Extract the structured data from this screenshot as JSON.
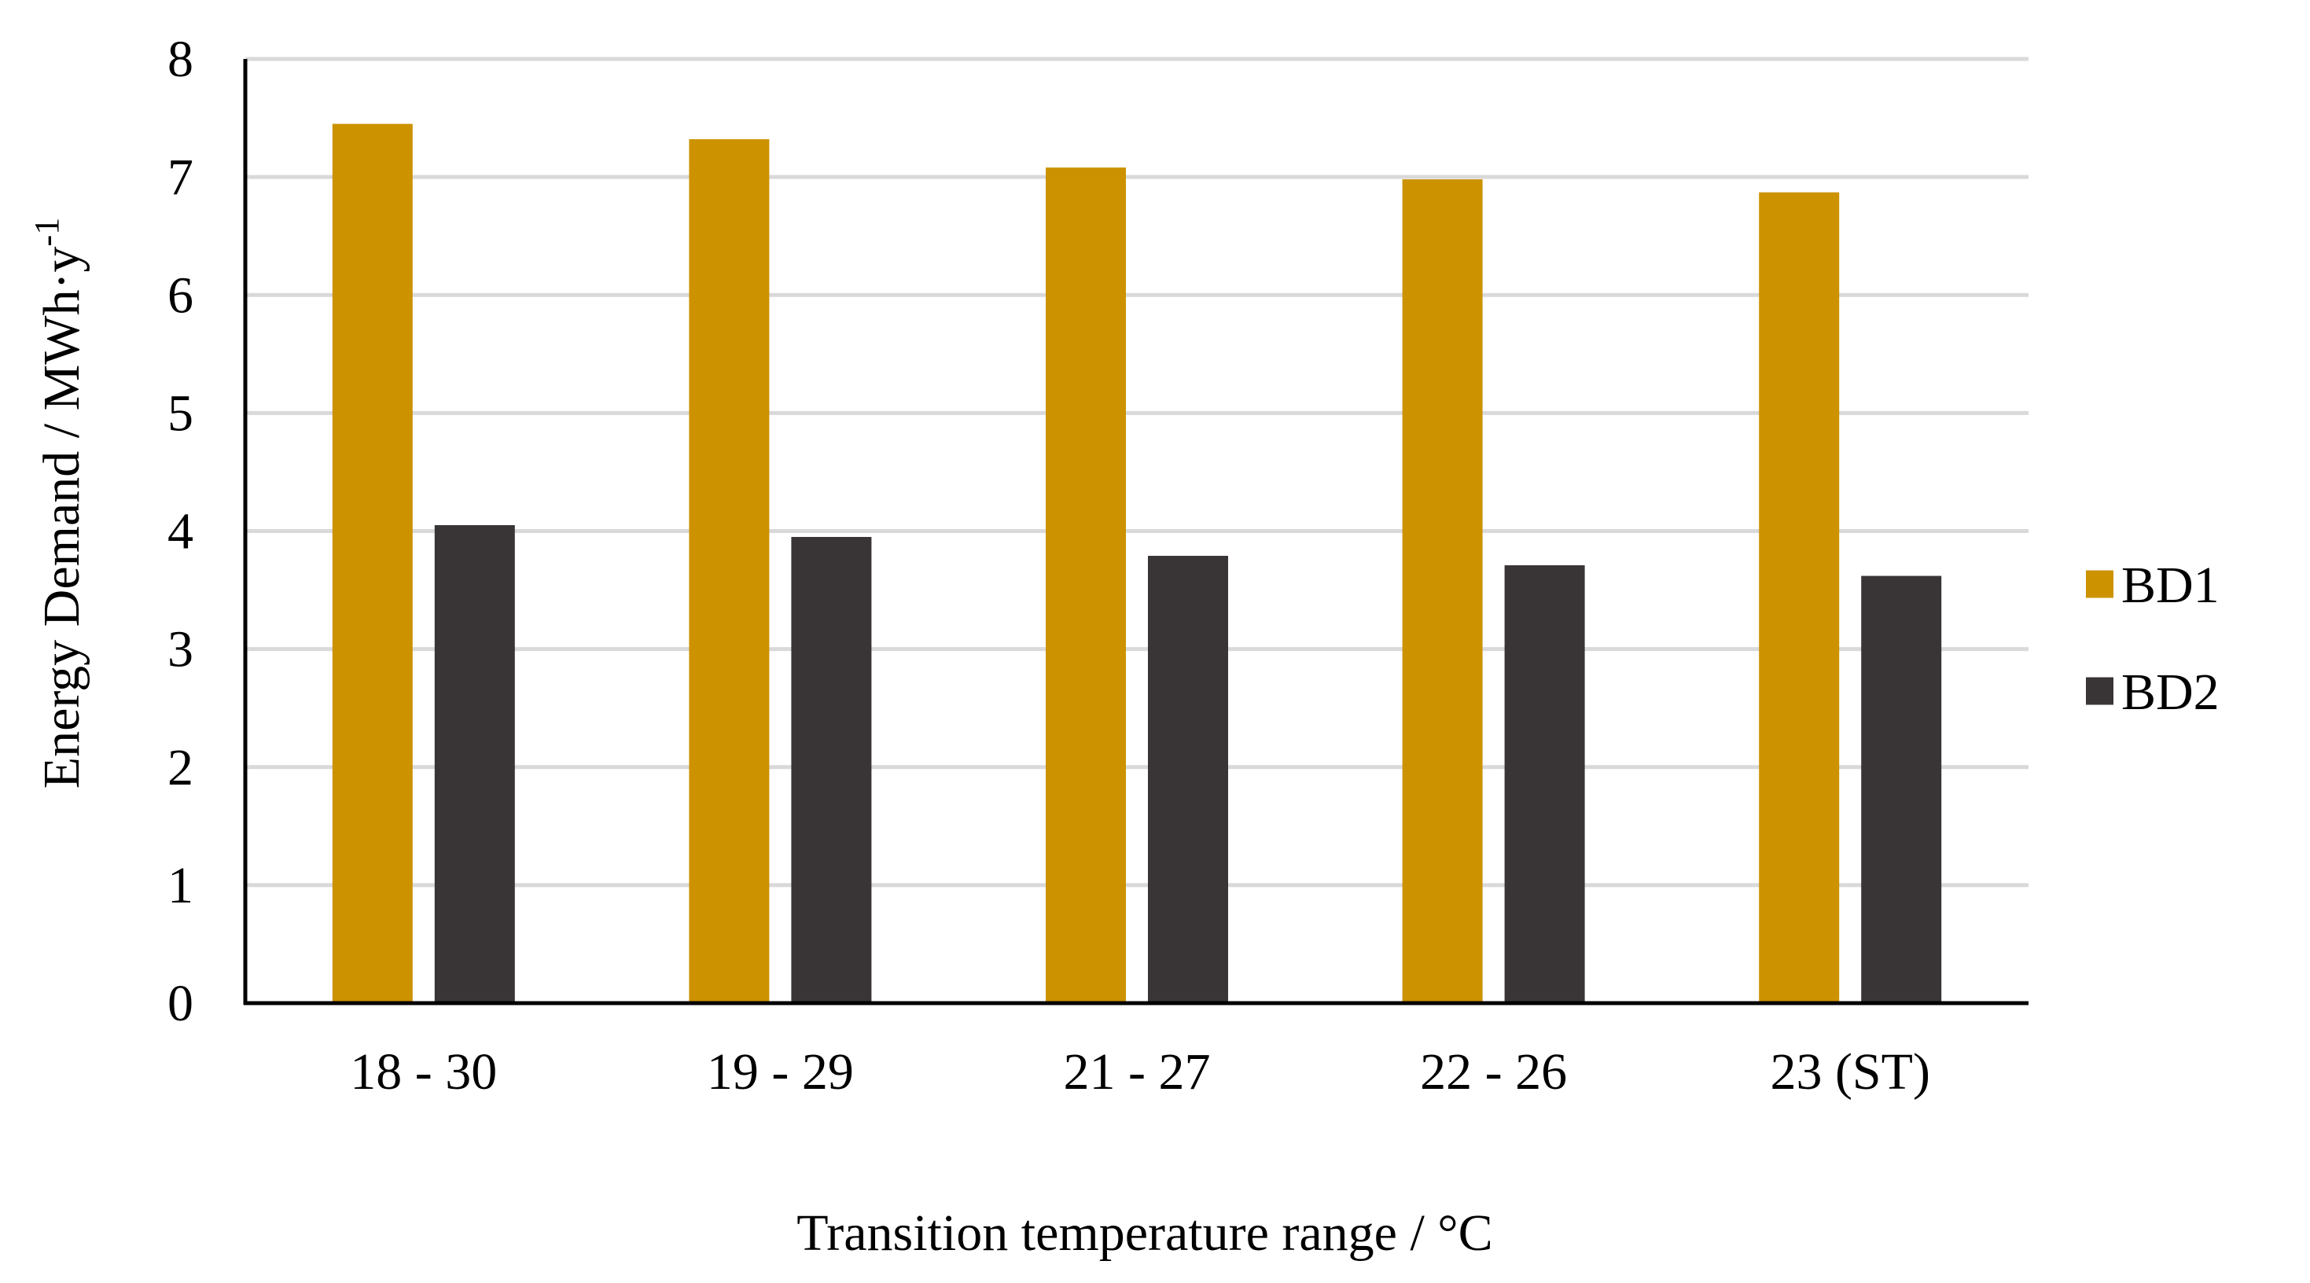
{
  "chart_data": {
    "type": "bar",
    "title": "",
    "xlabel": "Transition temperature range / °C",
    "ylabel": "Energy Demand /  MWh·y",
    "ylabel_superscript": "-1",
    "categories": [
      "18 - 30",
      "19 - 29",
      "21 - 27",
      "22 - 26",
      "23 (ST)"
    ],
    "series": [
      {
        "name": "BD1",
        "color": "#cc9200",
        "values": [
          7.45,
          7.32,
          7.08,
          6.98,
          6.87
        ]
      },
      {
        "name": "BD2",
        "color": "#393536",
        "values": [
          4.05,
          3.95,
          3.79,
          3.71,
          3.62
        ]
      }
    ],
    "ylim": [
      0,
      8
    ],
    "yticks": [
      0,
      1,
      2,
      3,
      4,
      5,
      6,
      7,
      8
    ],
    "grid": true,
    "legend_position": "right"
  },
  "colors": {
    "grid": "#d9d9d9",
    "axis": "#000000"
  }
}
